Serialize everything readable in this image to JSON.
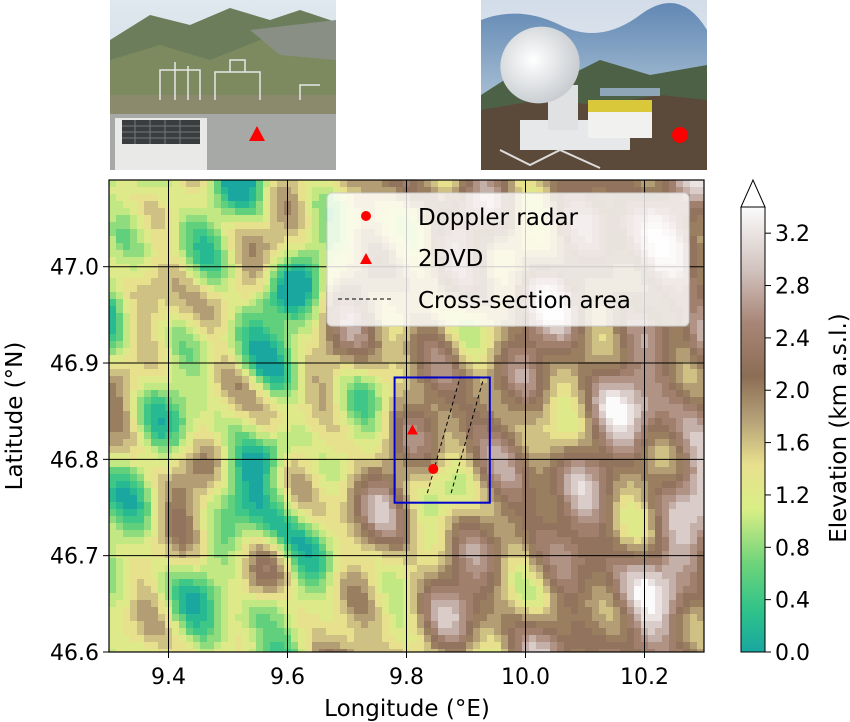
{
  "map": {
    "xlabel": "Longitude (°E)",
    "ylabel": "Latitude (°N)",
    "xlim": [
      9.3,
      10.3
    ],
    "ylim": [
      46.6,
      47.09
    ],
    "xticks": [
      "9.4",
      "9.6",
      "9.8",
      "10.0",
      "10.2"
    ],
    "xtick_values": [
      9.4,
      9.6,
      9.8,
      10.0,
      10.2
    ],
    "yticks": [
      "46.6",
      "46.7",
      "46.8",
      "46.9",
      "47.0"
    ],
    "ytick_values": [
      46.6,
      46.7,
      46.8,
      46.9,
      47.0
    ],
    "grid": true,
    "colormap": "terrain",
    "box": {
      "lon": [
        9.78,
        9.94
      ],
      "lat": [
        46.755,
        46.885
      ],
      "color": "#0000cc"
    },
    "cross_section_lines": [
      {
        "lon": [
          9.835,
          9.89
        ],
        "lat": [
          46.765,
          46.885
        ]
      },
      {
        "lon": [
          9.875,
          9.93
        ],
        "lat": [
          46.765,
          46.885
        ]
      }
    ],
    "doppler_radar": {
      "lon": 9.845,
      "lat": 46.79,
      "color": "#ff0000"
    },
    "twodvd": {
      "lon": 9.81,
      "lat": 46.83,
      "color": "#ff0000"
    }
  },
  "legend": {
    "placement": "top-right",
    "entries": [
      {
        "label": "Doppler radar",
        "marker": "circle"
      },
      {
        "label": "2DVD",
        "marker": "triangle"
      },
      {
        "label": "Cross-section area",
        "marker": "dashed-line"
      }
    ]
  },
  "colorbar": {
    "label": "Elevation (km a.s.l.)",
    "ticks": [
      "0.0",
      "0.4",
      "0.8",
      "1.2",
      "1.6",
      "2.0",
      "2.4",
      "2.8",
      "3.2"
    ],
    "tick_values": [
      0.0,
      0.4,
      0.8,
      1.2,
      1.6,
      2.0,
      2.4,
      2.8,
      3.2
    ],
    "range": [
      0.0,
      3.4
    ],
    "extend": "max"
  },
  "photos": [
    {
      "name": "2dvd-site-photo",
      "marker": "triangle",
      "marker_color": "#ff0000"
    },
    {
      "name": "radar-site-photo",
      "marker": "circle",
      "marker_color": "#ff0000"
    }
  ]
}
